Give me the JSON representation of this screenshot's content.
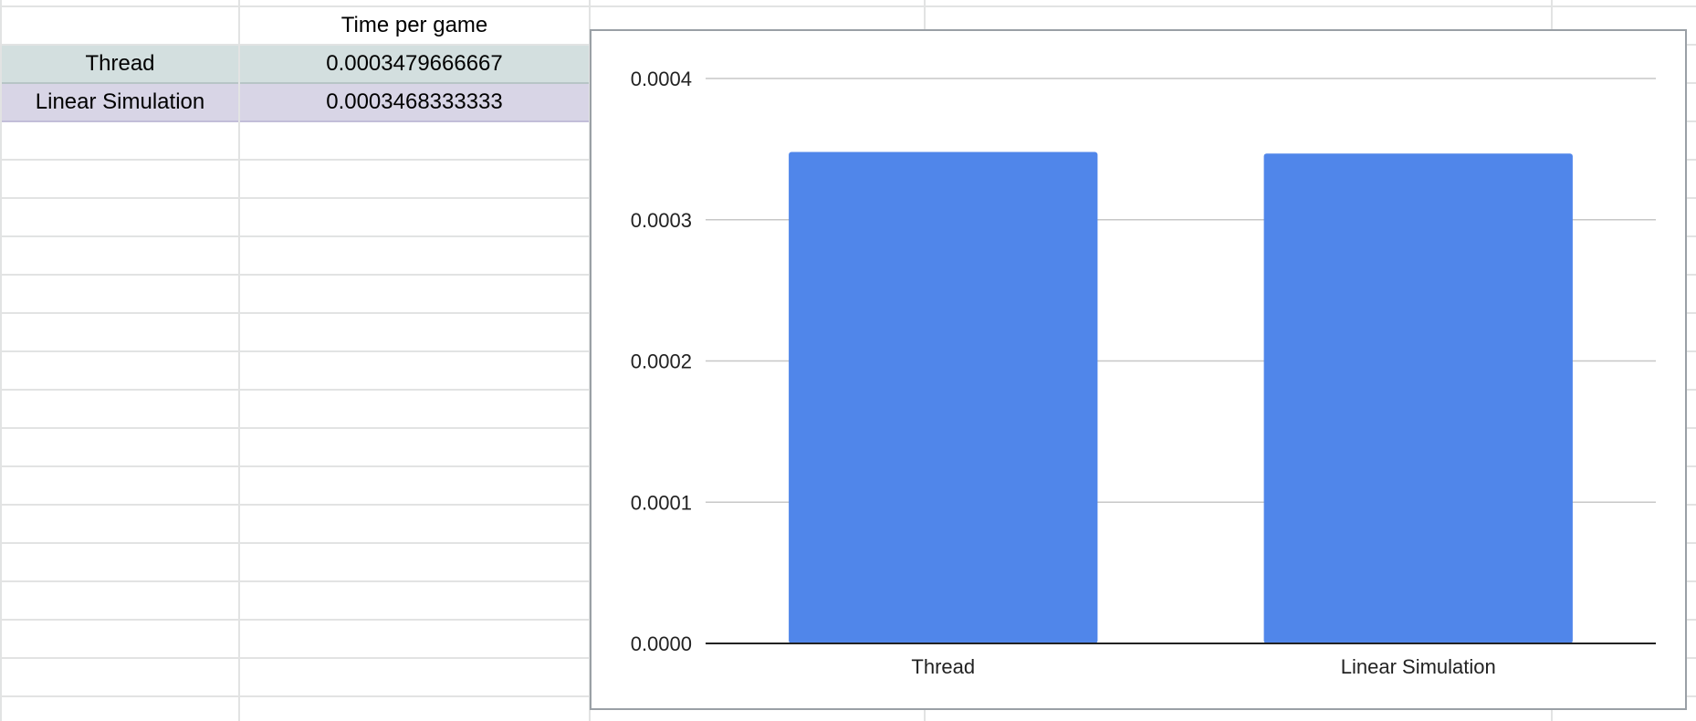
{
  "sheet": {
    "header": [
      "",
      "Time per game"
    ],
    "rows": [
      {
        "label": "Thread",
        "value": "0.0003479666667"
      },
      {
        "label": "Linear Simulation",
        "value": "0.0003468333333"
      }
    ],
    "colors": {
      "thread_row": "#d3dfdf",
      "linear_row": "#d8d5e6",
      "gridline": "#e2e3e3"
    }
  },
  "chart_data": {
    "type": "bar",
    "categories": [
      "Thread",
      "Linear Simulation"
    ],
    "values": [
      0.0003479666667,
      0.0003468333333
    ],
    "title": "",
    "xlabel": "",
    "ylabel": "",
    "ylim": [
      0,
      0.0004
    ],
    "yticks": [
      "0.0000",
      "0.0001",
      "0.0002",
      "0.0003",
      "0.0004"
    ],
    "grid": true,
    "legend": "none",
    "bar_color": "#5086ea"
  }
}
